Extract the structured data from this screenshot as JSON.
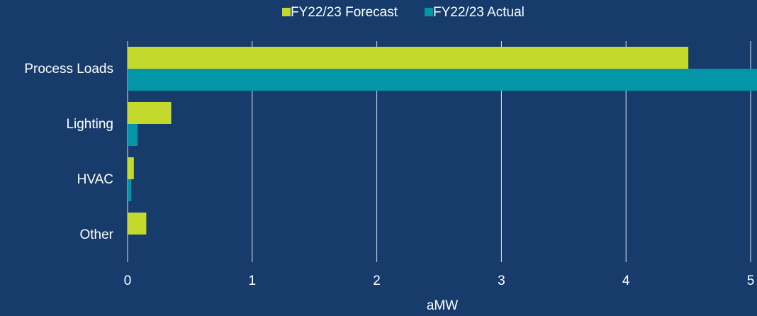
{
  "chart_data": {
    "type": "hbar",
    "categories": [
      "Process Loads",
      "Lighting",
      "HVAC",
      "Other"
    ],
    "series": [
      {
        "name": "FY22/23 Forecast",
        "color": "#c5d92d",
        "values": [
          4.5,
          0.35,
          0.05,
          0.15
        ]
      },
      {
        "name": "FY22/23 Actual",
        "color": "#0396a6",
        "values": [
          5.2,
          0.08,
          0.03,
          0
        ]
      }
    ],
    "xlabel": "aMW",
    "xlim": [
      0,
      5.05
    ],
    "xticks": [
      0,
      1,
      2,
      3,
      4,
      5
    ],
    "grid": true,
    "legend": "top"
  }
}
